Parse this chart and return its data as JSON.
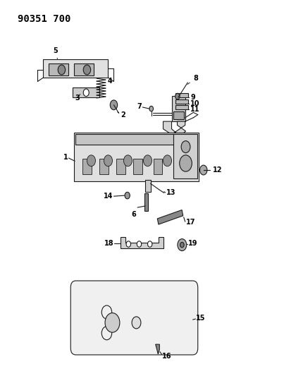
{
  "title": "90351 700",
  "background_color": "#ffffff",
  "fig_width": 4.03,
  "fig_height": 5.33,
  "dpi": 100
}
